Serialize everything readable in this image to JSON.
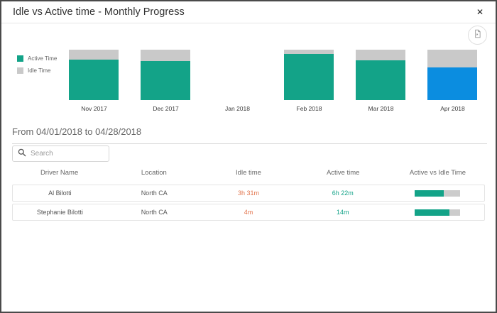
{
  "dialog": {
    "title": "Idle vs Active time - Monthly Progress",
    "close_icon": "✕"
  },
  "toolbar": {
    "export_button": "export-chart"
  },
  "chart_data": {
    "type": "bar",
    "stacked": true,
    "orientation": "vertical",
    "title": "",
    "xlabel": "",
    "ylabel": "",
    "ylim": [
      0,
      100
    ],
    "units": "percent of month total (estimated from 100% stacked bars)",
    "grid": false,
    "legend_position": "left",
    "categories": [
      "Nov 2017",
      "Dec 2017",
      "Jan 2018",
      "Feb 2018",
      "Mar 2018",
      "Apr 2018"
    ],
    "series": [
      {
        "name": "Active Time",
        "color": "#13A388",
        "values": [
          80,
          78,
          0,
          92,
          79,
          65
        ]
      },
      {
        "name": "Idle Time",
        "color": "#C9C9C9",
        "values": [
          20,
          22,
          0,
          8,
          21,
          35
        ]
      }
    ],
    "selected_index": 5,
    "selected_category": "Apr 2018",
    "selected_active_color": "#0B8DE0"
  },
  "period": {
    "label": "From 04/01/2018 to 04/28/2018"
  },
  "search": {
    "placeholder": "Search"
  },
  "table": {
    "columns": [
      "Driver Name",
      "Location",
      "Idle time",
      "Active time",
      "Active vs Idle Time"
    ],
    "rows": [
      {
        "driver": "Al Bilotti",
        "location": "North CA",
        "idle": "3h 31m",
        "active": "6h 22m",
        "active_pct": 64
      },
      {
        "driver": "Stephanie Bilotti",
        "location": "North CA",
        "idle": "4m",
        "active": "14m",
        "active_pct": 78
      }
    ]
  },
  "colors": {
    "active": "#13A388",
    "idle_bar": "#C9C9C9",
    "selected_blue": "#0B8DE0",
    "idle_text": "#E2754D",
    "active_text": "#13A388",
    "progress_bg": "#CCCCCC"
  }
}
